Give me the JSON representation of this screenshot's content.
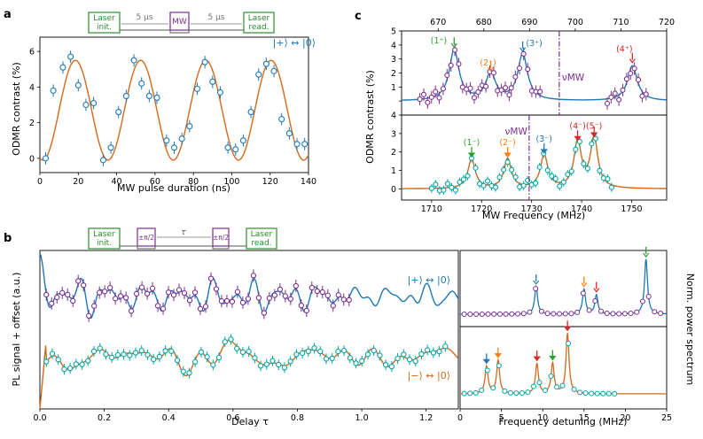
{
  "panel_labels": {
    "a": "a",
    "b": "b",
    "c": "c"
  },
  "colors": {
    "blue": "#1f77b4",
    "orange": "#d2691e",
    "purple": "#7b2e8e",
    "teal": "#00a3a3",
    "green": "#2ca02c",
    "arrow_orange": "#ff7f0e",
    "red": "#d62728",
    "seq_green": "#2e8b2e"
  },
  "seq_a": {
    "laser_init_1": "Laser",
    "laser_init_2": "init.",
    "mw": "MW",
    "t1": "5 μs",
    "t2": "5 μs",
    "laser_read_1": "Laser",
    "laser_read_2": "read."
  },
  "seq_b": {
    "laser_init_1": "Laser",
    "laser_init_2": "init.",
    "pulse1": "±π/2",
    "tau": "τ",
    "pulse2": "±π/2",
    "laser_read_1": "Laser",
    "laser_read_2": "read."
  },
  "legend_a": "|+⟩ ↔ |0⟩",
  "legend_b_top": "|+⟩ ↔ |0⟩",
  "legend_b_bottom": "|−⟩ ↔ |0⟩",
  "c_labels": {
    "top": [
      "(1⁺)",
      "(2⁺)",
      "(3⁺)",
      "(4⁺)"
    ],
    "bottom": [
      "(1⁻)",
      "(2⁻)",
      "(3⁻)",
      "(4⁻)(5⁻)"
    ],
    "nu_mw": "νMW"
  },
  "chart_data": [
    {
      "id": "a",
      "type": "scatter",
      "xlabel": "MW pulse duration (ns)",
      "ylabel": "ODMR contrast (%)",
      "xlim": [
        0,
        140
      ],
      "ylim": [
        -0.8,
        6.8
      ],
      "xticks": [
        0,
        20,
        40,
        60,
        80,
        100,
        120,
        140
      ],
      "yticks": [
        0,
        2,
        4,
        6
      ],
      "x": [
        3,
        7,
        12,
        16,
        20,
        24,
        28,
        33,
        37,
        41,
        45,
        49,
        53,
        57,
        61,
        66,
        70,
        74,
        78,
        82,
        86,
        90,
        94,
        98,
        102,
        106,
        110,
        114,
        118,
        122,
        126,
        130,
        134,
        138
      ],
      "y": [
        0,
        3.8,
        5.1,
        5.7,
        4.1,
        3.0,
        3.1,
        -0.1,
        0.6,
        2.6,
        3.5,
        5.5,
        4.2,
        3.5,
        3.4,
        1.0,
        0.6,
        1.1,
        1.8,
        3.9,
        5.4,
        4.3,
        3.7,
        0.6,
        0.5,
        1.0,
        2.6,
        4.7,
        5.3,
        4.9,
        2.2,
        1.4,
        0.8,
        0.8
      ],
      "fit": {
        "offset": 2.7,
        "amplitude": 2.8,
        "period_ns": 34,
        "phase_ns": 18.5
      }
    },
    {
      "id": "b-time",
      "type": "line",
      "xlabel": "Delay τ",
      "ylabel": "PL signal + offset (a.u.)",
      "xlim": [
        0,
        1.3
      ],
      "xticks": [
        0.0,
        0.2,
        0.4,
        0.6,
        0.8,
        1.0,
        1.2
      ],
      "series": [
        {
          "name": "|+⟩ ↔ |0⟩",
          "fit_freqs_mhz": [
            9.2,
            15.0,
            16.5,
            22.5
          ],
          "data_x_range": [
            0.02,
            0.97
          ],
          "fit_x_range": [
            0,
            1.3
          ]
        },
        {
          "name": "|−⟩ ↔ |0⟩",
          "fit_freqs_mhz": [
            3.2,
            4.6,
            9.3,
            11.2,
            13.0
          ],
          "data_x_range": [
            0.02,
            1.27
          ],
          "fit_x_range": [
            0,
            1.3
          ]
        }
      ]
    },
    {
      "id": "b-freq",
      "type": "line",
      "xlabel": "Frequency detuning (MHz)",
      "ylabel": "Norm. power spectrum",
      "xlim": [
        0,
        25
      ],
      "xticks": [
        0,
        5,
        10,
        15,
        20,
        25
      ],
      "series": [
        {
          "name": "|+⟩ ↔ |0⟩",
          "peaks_mhz": [
            9.2,
            15.0,
            16.5,
            22.5
          ],
          "heights": [
            0.5,
            0.45,
            0.35,
            1.0
          ]
        },
        {
          "name": "|−⟩ ↔ |0⟩",
          "peaks_mhz": [
            3.2,
            4.6,
            9.3,
            11.2,
            13.0
          ],
          "heights": [
            0.45,
            0.55,
            0.5,
            0.5,
            1.0
          ]
        }
      ]
    },
    {
      "id": "c",
      "type": "line",
      "xlabel": "MW Frequency (MHz)",
      "ylabel": "ODMR contrast (%)",
      "top_xlim": [
        662,
        720
      ],
      "top_xticks": [
        670,
        680,
        690,
        700,
        710,
        720
      ],
      "bottom_xlim": [
        1704,
        1757
      ],
      "bottom_xticks": [
        1710,
        1720,
        1730,
        1740,
        1750
      ],
      "top_ylim": [
        -1,
        5
      ],
      "top_yticks": [
        0,
        1,
        2,
        3,
        4,
        5
      ],
      "bottom_ylim": [
        -0.6,
        4
      ],
      "bottom_yticks": [
        0,
        1,
        2,
        3,
        4
      ],
      "top_nu_mw": 696.5,
      "bottom_nu_mw": 1729.5,
      "series": [
        {
          "name": "top",
          "peaks_mhz": [
            673.5,
            681.5,
            688.5,
            712.5
          ],
          "heights": [
            3.6,
            1.9,
            3.3,
            2.5
          ],
          "width": 1.3
        },
        {
          "name": "bottom",
          "peaks_mhz": [
            1718.0,
            1725.2,
            1732.5,
            1739.2,
            1742.5
          ],
          "heights": [
            1.6,
            1.6,
            1.8,
            2.5,
            2.7
          ],
          "width": 0.9
        }
      ]
    }
  ]
}
